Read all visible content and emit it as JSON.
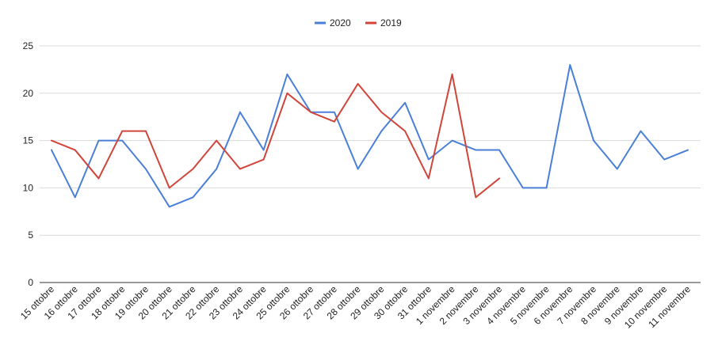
{
  "chart_data": {
    "type": "line",
    "title": "",
    "xlabel": "",
    "ylabel": "",
    "ylim": [
      0,
      25
    ],
    "yticks": [
      0,
      5,
      10,
      15,
      20,
      25
    ],
    "grid": true,
    "legend_position": "top-center",
    "categories": [
      "15 ottobre",
      "16 ottobre",
      "17 ottobre",
      "18 ottobre",
      "19 ottobre",
      "20 ottobre",
      "21 ottobre",
      "22 ottobre",
      "23 ottobre",
      "24 ottobre",
      "25 ottobre",
      "26 ottobre",
      "27 ottobre",
      "28 ottobre",
      "29 ottobre",
      "30 ottobre",
      "31 ottobre",
      "1 novembre",
      "2 novembre",
      "3 novembre",
      "4 novembre",
      "5 novembre",
      "6 novembre",
      "7 novembre",
      "8 novembre",
      "9 novembre",
      "10 novembre",
      "11 novembre"
    ],
    "series": [
      {
        "name": "2020",
        "color": "#4a7fd8",
        "values": [
          14,
          9,
          15,
          15,
          12,
          8,
          9,
          12,
          18,
          14,
          22,
          18,
          18,
          12,
          16,
          19,
          13,
          15,
          14,
          14,
          10,
          10,
          23,
          15,
          12,
          16,
          13,
          14
        ]
      },
      {
        "name": "2019",
        "color": "#d0453a",
        "values": [
          15,
          14,
          11,
          16,
          16,
          10,
          12,
          15,
          12,
          13,
          20,
          18,
          17,
          21,
          18,
          16,
          11,
          22,
          9,
          11,
          null,
          null,
          null,
          null,
          null,
          null,
          null,
          null
        ]
      }
    ]
  }
}
